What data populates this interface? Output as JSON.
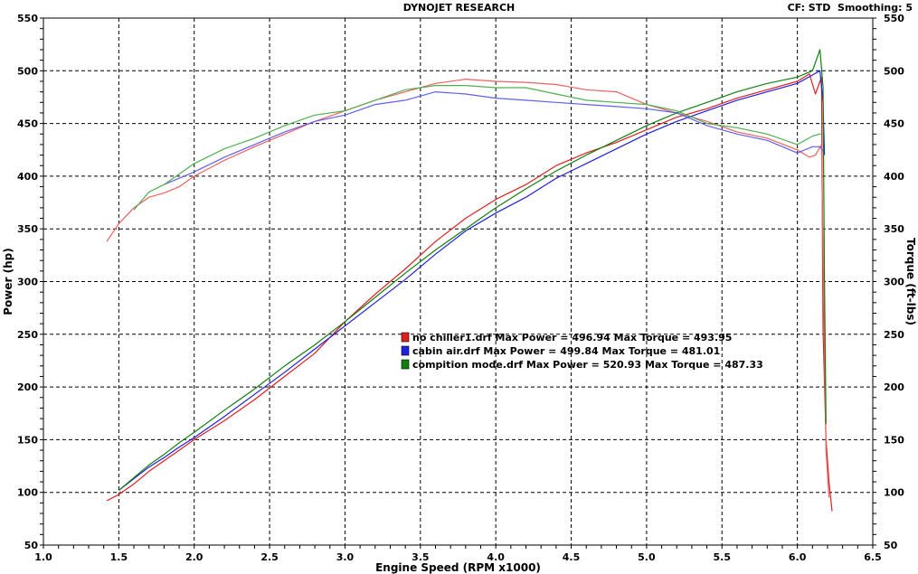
{
  "header": {
    "title": "DYNOJET RESEARCH",
    "cf": "CF: STD",
    "smoothing": "Smoothing: 5"
  },
  "chart_data": {
    "type": "line",
    "title": "DYNOJET RESEARCH",
    "xlabel": "Engine Speed (RPM x1000)",
    "ylabel_left": "Power (hp)",
    "ylabel_right": "Torque (ft-lbs)",
    "xlim": [
      1.0,
      6.5
    ],
    "ylim": [
      50,
      550
    ],
    "xticks": [
      "1.0",
      "1.5",
      "2.0",
      "2.5",
      "3.0",
      "3.5",
      "4.0",
      "4.5",
      "5.0",
      "5.5",
      "6.0",
      "6.5"
    ],
    "yticks": [
      "50",
      "100",
      "150",
      "200",
      "250",
      "300",
      "350",
      "400",
      "450",
      "500",
      "550"
    ],
    "grid": true,
    "legend_position": "center",
    "legend": [
      {
        "text": "no chiller1.drf Max Power = 496.94     Max Torque = 493.95",
        "color": "#e02020"
      },
      {
        "text": "cabin air.drf Max Power = 499.84     Max Torque = 481.01",
        "color": "#2020e0"
      },
      {
        "text": "compition mode.drf Max Power = 520.93     Max Torque = 487.33",
        "color": "#108010"
      }
    ],
    "series": [
      {
        "name": "no chiller1.drf",
        "kind": "power",
        "color": "#e02020",
        "x": [
          1.42,
          1.5,
          1.6,
          1.7,
          1.8,
          1.9,
          2.0,
          2.2,
          2.4,
          2.6,
          2.8,
          3.0,
          3.2,
          3.4,
          3.6,
          3.8,
          4.0,
          4.2,
          4.4,
          4.6,
          4.8,
          5.0,
          5.2,
          5.4,
          5.6,
          5.8,
          6.0,
          6.08,
          6.12,
          6.16,
          6.17,
          6.19,
          6.21,
          6.23
        ],
        "y": [
          92,
          98,
          108,
          120,
          130,
          140,
          150,
          168,
          188,
          210,
          232,
          262,
          288,
          312,
          338,
          360,
          378,
          392,
          410,
          422,
          432,
          444,
          456,
          464,
          474,
          482,
          490,
          497,
          478,
          494,
          255,
          150,
          110,
          82
        ]
      },
      {
        "name": "no chiller1.drf",
        "kind": "torque",
        "color": "#f06060",
        "x": [
          1.42,
          1.5,
          1.6,
          1.7,
          1.8,
          1.9,
          2.0,
          2.2,
          2.4,
          2.6,
          2.8,
          3.0,
          3.2,
          3.4,
          3.6,
          3.8,
          4.0,
          4.2,
          4.4,
          4.6,
          4.8,
          5.0,
          5.2,
          5.4,
          5.6,
          5.8,
          6.0,
          6.08,
          6.12,
          6.16,
          6.17,
          6.19,
          6.21
        ],
        "y": [
          338,
          355,
          370,
          380,
          384,
          390,
          400,
          415,
          428,
          440,
          452,
          462,
          472,
          480,
          488,
          492,
          490,
          489,
          487,
          482,
          480,
          468,
          460,
          452,
          442,
          436,
          425,
          418,
          420,
          430,
          330,
          140,
          95
        ]
      },
      {
        "name": "cabin air.drf",
        "kind": "power",
        "color": "#2020e0",
        "x": [
          1.5,
          1.6,
          1.7,
          1.8,
          1.9,
          2.0,
          2.2,
          2.4,
          2.6,
          2.8,
          3.0,
          3.2,
          3.4,
          3.6,
          3.8,
          4.0,
          4.2,
          4.4,
          4.6,
          4.8,
          5.0,
          5.2,
          5.4,
          5.6,
          5.8,
          6.0,
          6.1,
          6.15,
          6.17,
          6.18
        ],
        "y": [
          102,
          113,
          124,
          133,
          143,
          152,
          172,
          193,
          214,
          236,
          258,
          280,
          302,
          326,
          348,
          365,
          380,
          398,
          412,
          426,
          440,
          452,
          462,
          472,
          480,
          488,
          496,
          500,
          470,
          420
        ]
      },
      {
        "name": "cabin air.drf",
        "kind": "torque",
        "color": "#6060f0",
        "x": [
          1.8,
          1.9,
          2.0,
          2.2,
          2.4,
          2.6,
          2.8,
          3.0,
          3.2,
          3.4,
          3.6,
          3.8,
          4.0,
          4.2,
          4.4,
          4.6,
          4.8,
          5.0,
          5.2,
          5.4,
          5.6,
          5.8,
          6.0,
          6.1,
          6.15,
          6.17
        ],
        "y": [
          392,
          398,
          404,
          418,
          430,
          442,
          452,
          458,
          468,
          472,
          480,
          478,
          474,
          472,
          470,
          468,
          466,
          464,
          460,
          448,
          440,
          434,
          422,
          428,
          428,
          424
        ]
      },
      {
        "name": "compition mode.drf",
        "kind": "power",
        "color": "#108010",
        "x": [
          1.5,
          1.6,
          1.7,
          1.8,
          1.9,
          2.0,
          2.2,
          2.4,
          2.6,
          2.8,
          3.0,
          3.2,
          3.4,
          3.6,
          3.8,
          4.0,
          4.2,
          4.4,
          4.6,
          4.8,
          5.0,
          5.2,
          5.4,
          5.6,
          5.8,
          6.0,
          6.1,
          6.15,
          6.17,
          6.18,
          6.19
        ],
        "y": [
          102,
          114,
          126,
          136,
          147,
          157,
          178,
          198,
          220,
          240,
          262,
          285,
          308,
          330,
          350,
          370,
          388,
          405,
          420,
          434,
          448,
          460,
          470,
          480,
          488,
          494,
          500,
          520,
          485,
          300,
          165
        ]
      },
      {
        "name": "compition mode.drf",
        "kind": "torque",
        "color": "#50b050",
        "x": [
          1.6,
          1.7,
          1.8,
          1.9,
          2.0,
          2.2,
          2.4,
          2.6,
          2.8,
          3.0,
          3.2,
          3.4,
          3.6,
          3.8,
          4.0,
          4.2,
          4.4,
          4.6,
          4.8,
          5.0,
          5.2,
          5.4,
          5.6,
          5.8,
          6.0,
          6.1,
          6.15,
          6.17
        ],
        "y": [
          368,
          385,
          392,
          402,
          412,
          426,
          436,
          448,
          458,
          462,
          472,
          482,
          486,
          486,
          484,
          484,
          478,
          472,
          470,
          468,
          462,
          450,
          446,
          440,
          430,
          438,
          440,
          440
        ]
      }
    ]
  }
}
